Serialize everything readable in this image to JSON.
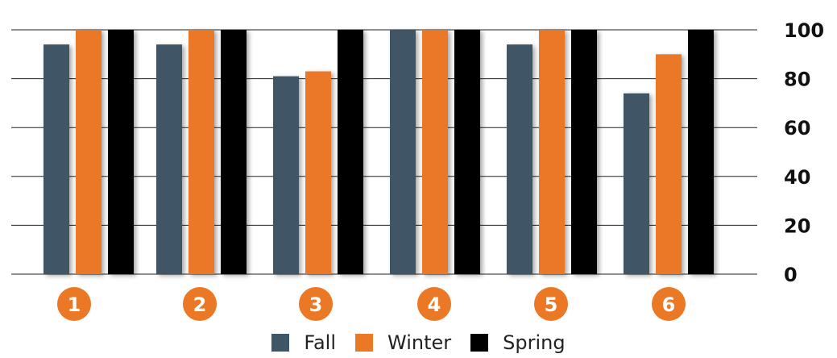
{
  "chart_data": {
    "type": "bar",
    "categories": [
      "1",
      "2",
      "3",
      "4",
      "5",
      "6"
    ],
    "series": [
      {
        "name": "Fall",
        "color": "#3f5666",
        "values": [
          94,
          94,
          81,
          100,
          94,
          74
        ]
      },
      {
        "name": "Winter",
        "color": "#ea7825",
        "values": [
          100,
          100,
          83,
          100,
          100,
          90
        ]
      },
      {
        "name": "Spring",
        "color": "#000000",
        "values": [
          100,
          100,
          100,
          100,
          100,
          100
        ]
      }
    ],
    "yticks": [
      "0",
      "20",
      "40",
      "60",
      "80",
      "100"
    ],
    "ylim": [
      0,
      100
    ],
    "y_axis_position": "right",
    "grid": true,
    "legend_position": "bottom-center",
    "category_badge_color": "#ea7825"
  }
}
